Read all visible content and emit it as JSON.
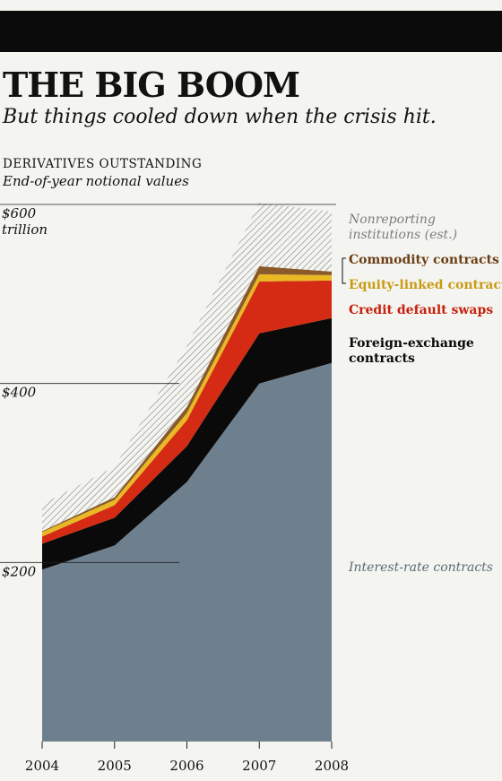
{
  "header": {
    "title": "THE BIG BOOM",
    "subtitle": "But things cooled down when the crisis hit.",
    "kicker": "DERIVATIVES OUTSTANDING",
    "kicker_sub": "End-of-year notional values"
  },
  "chart_data": {
    "type": "area",
    "stacked": true,
    "categories": [
      "2004",
      "2005",
      "2006",
      "2007",
      "2008"
    ],
    "y_tick_labels": [
      {
        "value": 600,
        "lines": [
          "$600",
          "trillion"
        ]
      },
      {
        "value": 400,
        "lines": [
          "$400"
        ]
      },
      {
        "value": 200,
        "lines": [
          "$200"
        ]
      }
    ],
    "ylim": [
      0,
      600
    ],
    "series": [
      {
        "name": "Interest-rate contracts",
        "label_lines": [
          "Interest-rate contracts"
        ],
        "color": "#6e7f8e",
        "values": [
          192,
          219,
          290,
          400,
          423
        ]
      },
      {
        "name": "Foreign-exchange contracts",
        "label_lines": [
          "Foreign-exchange",
          "contracts"
        ],
        "color": "#0a0a0a",
        "values": [
          29,
          31,
          40,
          56,
          50
        ]
      },
      {
        "name": "Credit default swaps",
        "label_lines": [
          "Credit default swaps"
        ],
        "color": "#d52b14",
        "values": [
          8,
          14,
          29,
          58,
          42
        ]
      },
      {
        "name": "Equity-linked contracts",
        "label_lines": [
          "Equity-linked contracts"
        ],
        "color": "#e8b923",
        "values": [
          5,
          6,
          8,
          8,
          6
        ]
      },
      {
        "name": "Commodity contracts",
        "label_lines": [
          "Commodity contracts"
        ],
        "color": "#8a5a2b",
        "values": [
          1,
          3,
          7,
          9,
          4
        ]
      },
      {
        "name": "Nonreporting institutions (est.)",
        "label_lines": [
          "Nonreporting",
          "institutions (est.)"
        ],
        "color": "#c9c9c9",
        "hatched": true,
        "values": [
          30,
          34,
          68,
          71,
          67
        ]
      }
    ]
  }
}
